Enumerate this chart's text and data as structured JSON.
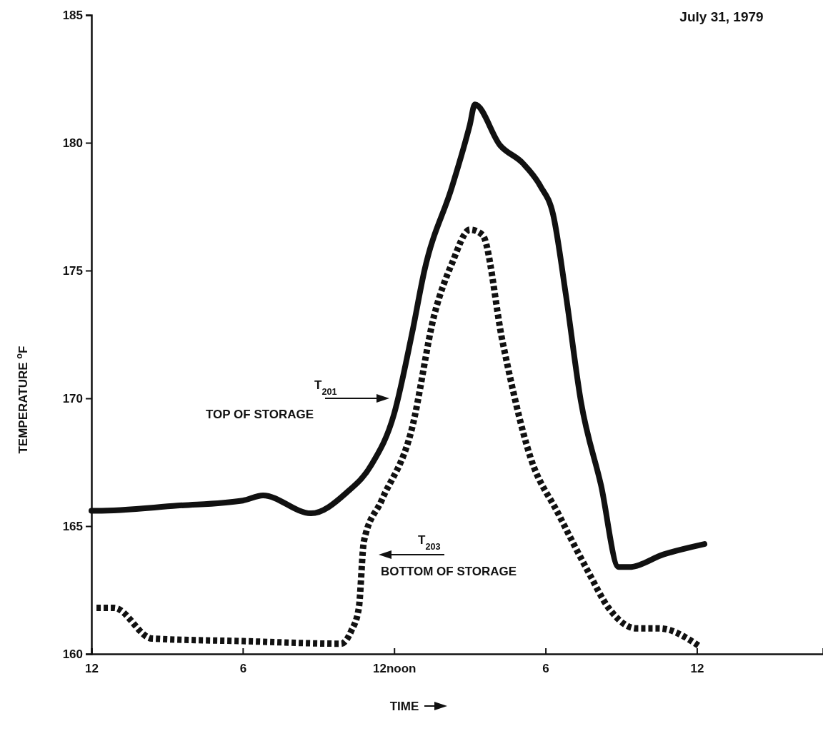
{
  "chart_data": {
    "type": "line",
    "title": "July 31, 1979",
    "xlabel": "TIME",
    "ylabel": "TEMPERATURE $^{o}$F",
    "xlim": [
      "1979-07-31T00:00",
      "1979-08-01T05:00"
    ],
    "xticks": [
      {
        "value": "1979-07-31T00:00",
        "label": "12"
      },
      {
        "value": "1979-07-31T06:00",
        "label": "6"
      },
      {
        "value": "1979-07-31T12:00",
        "label": "12noon"
      },
      {
        "value": "1979-07-31T18:00",
        "label": "6"
      },
      {
        "value": "1979-08-01T00:00",
        "label": "12"
      }
    ],
    "ylim": [
      160,
      185
    ],
    "yticks": [
      160,
      165,
      170,
      175,
      180,
      185
    ],
    "grid": false,
    "marker": "none",
    "series": [
      {
        "color": "#111111",
        "line_style": "solid",
        "x": [
          "1979-07-31T00:00",
          "1979-07-31T00:12",
          "1979-07-31T03:24",
          "1979-07-31T06:00",
          "1979-07-31T06:48",
          "1979-07-31T08:42",
          "1979-07-31T10:06",
          "1979-07-31T11:06",
          "1979-07-31T12:00",
          "1979-07-31T12:42",
          "1979-07-31T13:12",
          "1979-07-31T14:18",
          "1979-07-31T15:00",
          "1979-07-31T15:12",
          "1979-07-31T16:12",
          "1979-07-31T17:06",
          "1979-07-31T17:48",
          "1979-07-31T18:18",
          "1979-07-31T18:48",
          "1979-07-31T19:24",
          "1979-07-31T20:12",
          "1979-07-31T20:54",
          "1979-07-31T21:18",
          "1979-07-31T22:42",
          "1979-08-01T00:18"
        ],
        "values": [
          165.6,
          165.6,
          165.8,
          166,
          166.2,
          165.5,
          166.3,
          167.4,
          169.4,
          172.5,
          175,
          178.3,
          180.7,
          181.5,
          179.9,
          179.2,
          178.3,
          177.2,
          174.1,
          169.9,
          166.6,
          163.4,
          163.4,
          163.9,
          164.3
        ]
      },
      {
        "color": "#111111",
        "line_style": "dashed",
        "x": [
          "1979-07-31T00:12",
          "1979-07-31T00:54",
          "1979-07-31T02:24",
          "1979-07-31T06:00",
          "1979-07-31T09:54",
          "1979-07-31T10:18",
          "1979-07-31T10:36",
          "1979-07-31T10:48",
          "1979-07-31T11:30",
          "1979-07-31T12:42",
          "1979-07-31T13:36",
          "1979-07-31T14:18",
          "1979-07-31T15:00",
          "1979-07-31T15:30",
          "1979-07-31T16:18",
          "1979-07-31T17:24",
          "1979-07-31T18:30",
          "1979-07-31T19:42",
          "1979-07-31T20:30",
          "1979-07-31T21:36",
          "1979-07-31T22:30",
          "1979-08-01T00:06"
        ],
        "values": [
          161.8,
          161.8,
          160.6,
          160.5,
          160.4,
          160.9,
          161.8,
          164.4,
          166,
          168.8,
          173.3,
          175.3,
          176.6,
          176.4,
          172.2,
          167.7,
          165.5,
          163.2,
          161.8,
          161,
          161,
          160.3
        ]
      }
    ],
    "annotations": [
      "T$_{201}$",
      "TOP OF STORAGE",
      "T$_{203}$",
      "BOTTOM OF STORAGE"
    ]
  }
}
